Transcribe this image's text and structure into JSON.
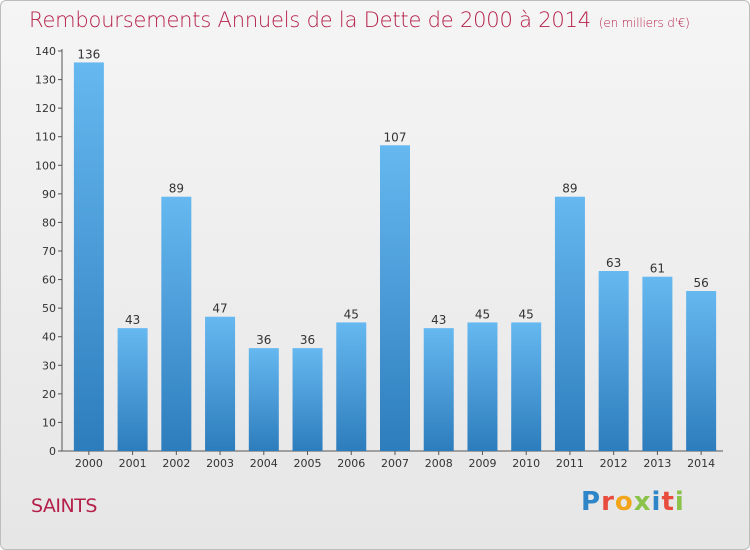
{
  "header": {
    "title": "Remboursements Annuels de la Dette de 2000 à 2014",
    "subtitle": "(en milliers d'€)"
  },
  "footer": {
    "city": "SAINTS",
    "brand": "Proxiti"
  },
  "colors": {
    "title": "#b5204a",
    "bar_top": "#66b8f0",
    "bar_bottom": "#2d7dbd",
    "brand_letters": [
      "#2e86c9",
      "#e84c3d",
      "#f2a51a",
      "#8bc34a",
      "#2e86c9",
      "#e84c3d",
      "#8bc34a"
    ]
  },
  "chart_data": {
    "type": "bar",
    "title": "Remboursements Annuels de la Dette de 2000 à 2014",
    "subtitle": "(en milliers d'€)",
    "categories": [
      "2000",
      "2001",
      "2002",
      "2003",
      "2004",
      "2005",
      "2006",
      "2007",
      "2008",
      "2009",
      "2010",
      "2011",
      "2012",
      "2013",
      "2014"
    ],
    "values": [
      136,
      43,
      89,
      47,
      36,
      36,
      45,
      107,
      43,
      45,
      45,
      89,
      63,
      61,
      56
    ],
    "ylim": [
      0,
      140
    ],
    "yticks": [
      0,
      10,
      20,
      30,
      40,
      50,
      60,
      70,
      80,
      90,
      100,
      110,
      120,
      130,
      140
    ],
    "grid": false,
    "data_labels": true
  }
}
